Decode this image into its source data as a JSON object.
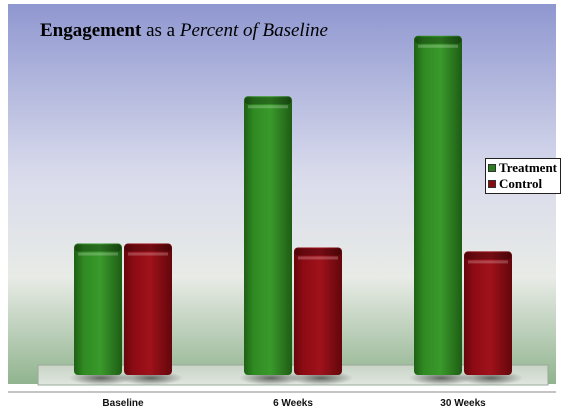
{
  "title": {
    "bold": "Engagement",
    "plain": " as a ",
    "italic": "Percent of Baseline"
  },
  "chart_data": {
    "type": "bar",
    "categories": [
      "Baseline",
      "6 Weeks",
      "30 Weeks"
    ],
    "series": [
      {
        "name": "Treatment",
        "color": "#2a7f1f",
        "values": [
          100,
          212,
          258
        ]
      },
      {
        "name": "Control",
        "color": "#8a0a12",
        "values": [
          100,
          97,
          94
        ]
      }
    ],
    "ylim": [
      0,
      270
    ],
    "grid": false,
    "legend_position": "right",
    "xlabel": "",
    "ylabel": ""
  }
}
